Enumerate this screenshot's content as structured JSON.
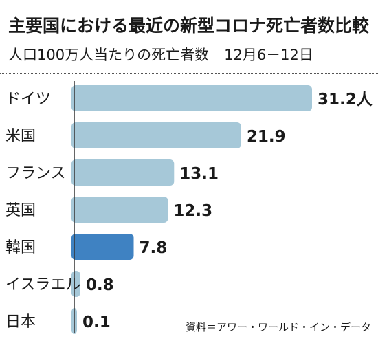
{
  "header": {
    "title": "主要国における最近の新型コロナ死亡者数比較",
    "subtitle": "人口100万人当たりの死亡者数",
    "period": "12月6－12日"
  },
  "source": "資料＝アワー・ワールド・イン・データ",
  "colors": {
    "bar": "#a6c8d8",
    "highlight": "#3f82c2",
    "axis": "#333333"
  },
  "chart_data": {
    "type": "bar",
    "orientation": "horizontal",
    "title": "主要国における最近の新型コロナ死亡者数比較",
    "subtitle": "人口100万人当たりの死亡者数 12月6－12日",
    "categories": [
      "ドイツ",
      "米国",
      "フランス",
      "英国",
      "韓国",
      "イスラエル",
      "日本"
    ],
    "values": [
      31.2,
      21.9,
      13.1,
      12.3,
      7.8,
      0.8,
      0.1
    ],
    "value_labels": [
      "31.2人",
      "21.9",
      "13.1",
      "12.3",
      "7.8",
      "0.8",
      "0.1"
    ],
    "highlight": "韓国",
    "xlim": [
      0,
      31.2
    ],
    "grid": false
  }
}
